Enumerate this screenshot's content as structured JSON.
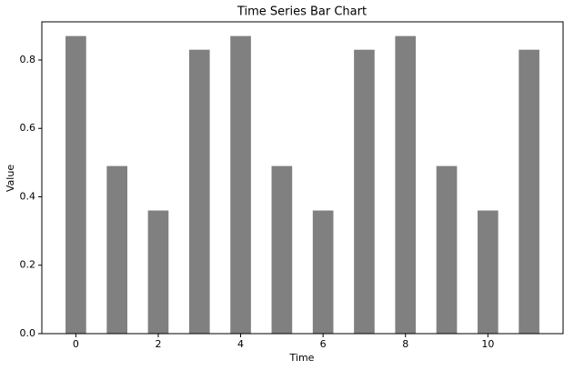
{
  "chart_data": {
    "type": "bar",
    "title": "Time Series Bar Chart",
    "x_label": "Time",
    "y_label": "Value",
    "x": [
      0,
      1,
      2,
      3,
      4,
      5,
      6,
      7,
      8,
      9,
      10,
      11
    ],
    "values": [
      0.87,
      0.49,
      0.36,
      0.83,
      0.87,
      0.49,
      0.36,
      0.83,
      0.87,
      0.49,
      0.36,
      0.83
    ],
    "color": "#808080",
    "xlim": [
      -0.825,
      11.825
    ],
    "xticks": [
      0,
      2,
      4,
      6,
      8,
      10
    ],
    "ylim": [
      0,
      0.9116
    ],
    "yticks": [
      {
        "value": 0,
        "label": "0.0"
      },
      0.2,
      0.4,
      0.6,
      0.8
    ]
  }
}
